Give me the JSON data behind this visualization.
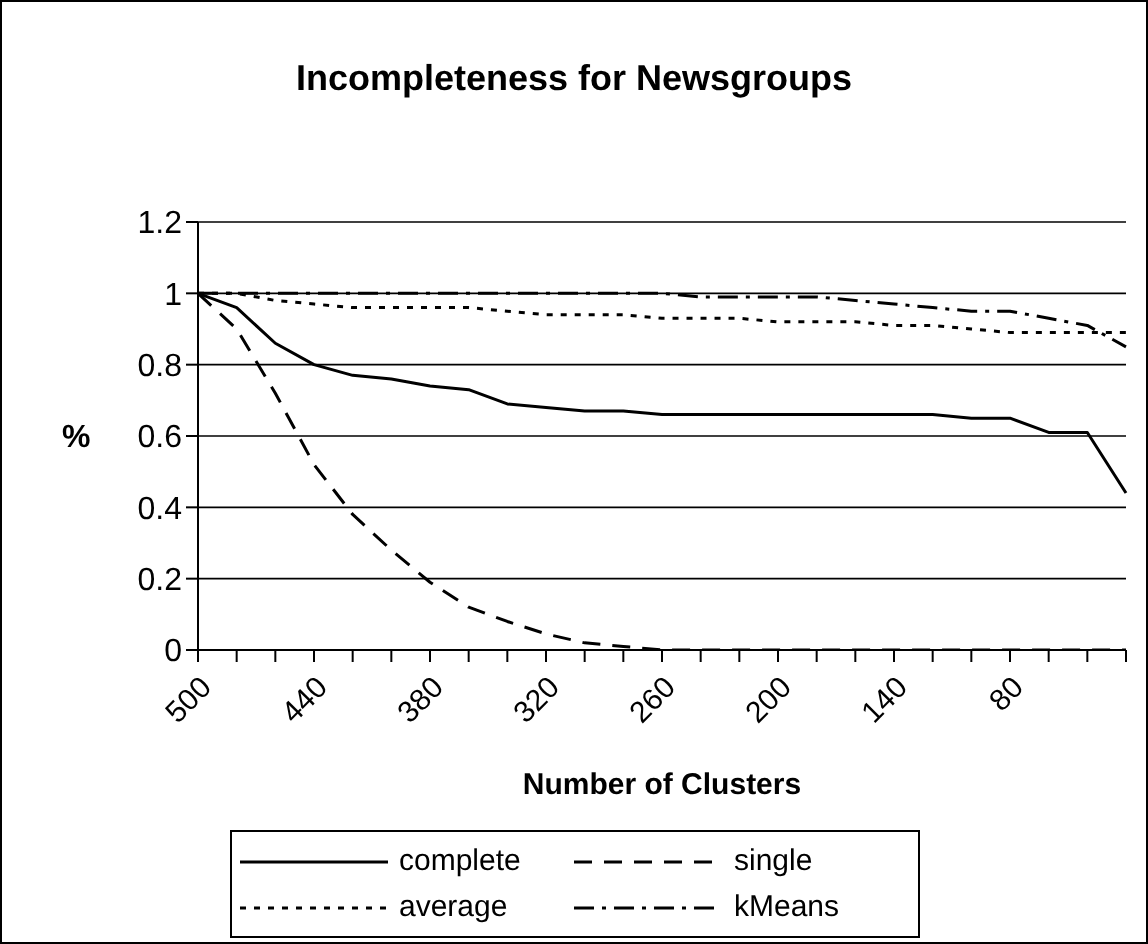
{
  "chart_data": {
    "type": "line",
    "title": "Incompleteness for Newsgroups",
    "xlabel": "Number of Clusters",
    "ylabel": "%",
    "categories": [
      "500",
      null,
      null,
      "440",
      null,
      null,
      "380",
      null,
      null,
      "320",
      null,
      null,
      "260",
      null,
      null,
      "200",
      null,
      null,
      "140",
      null,
      null,
      "80",
      null,
      null,
      null
    ],
    "ylim": [
      0,
      1.2
    ],
    "yticks": [
      0,
      0.2,
      0.4,
      0.6,
      0.8,
      1,
      {
        "value": 1.2,
        "label": "1.2"
      }
    ],
    "grid": "y",
    "legend": "bottom",
    "marker": "none",
    "series": [
      {
        "name": "complete",
        "color": "#000000",
        "line_style": "solid",
        "values": [
          1,
          0.96,
          0.86,
          0.8,
          0.77,
          0.76,
          0.74,
          0.73,
          0.69,
          0.68,
          0.67,
          0.67,
          0.66,
          0.66,
          0.66,
          0.66,
          0.66,
          0.66,
          0.66,
          0.66,
          0.65,
          0.65,
          0.61,
          0.61,
          0.44
        ]
      },
      {
        "name": "single",
        "color": "#000000",
        "line_style": "dashed",
        "values": [
          1,
          0.9,
          0.72,
          0.52,
          0.38,
          0.28,
          0.19,
          0.12,
          0.08,
          0.045,
          0.02,
          0.01,
          0,
          0,
          0,
          0,
          0,
          0,
          0,
          0,
          0,
          0,
          0,
          0,
          0
        ]
      },
      {
        "name": "average",
        "color": "#000000",
        "line_style": "dotted",
        "values": [
          1,
          1,
          0.98,
          0.97,
          0.96,
          0.96,
          0.96,
          0.96,
          0.95,
          0.94,
          0.94,
          0.94,
          0.93,
          0.93,
          0.93,
          0.92,
          0.92,
          0.92,
          0.91,
          0.91,
          0.9,
          0.89,
          0.89,
          0.89,
          0.89
        ]
      },
      {
        "name": "kMeans",
        "color": "#000000",
        "line_style": "dashdot",
        "values": [
          1,
          1,
          1,
          1,
          1,
          1,
          1,
          1,
          1,
          1,
          1,
          1,
          1,
          0.99,
          0.99,
          0.99,
          0.99,
          0.98,
          0.97,
          0.96,
          0.95,
          0.95,
          0.93,
          0.91,
          0.85
        ]
      }
    ]
  }
}
